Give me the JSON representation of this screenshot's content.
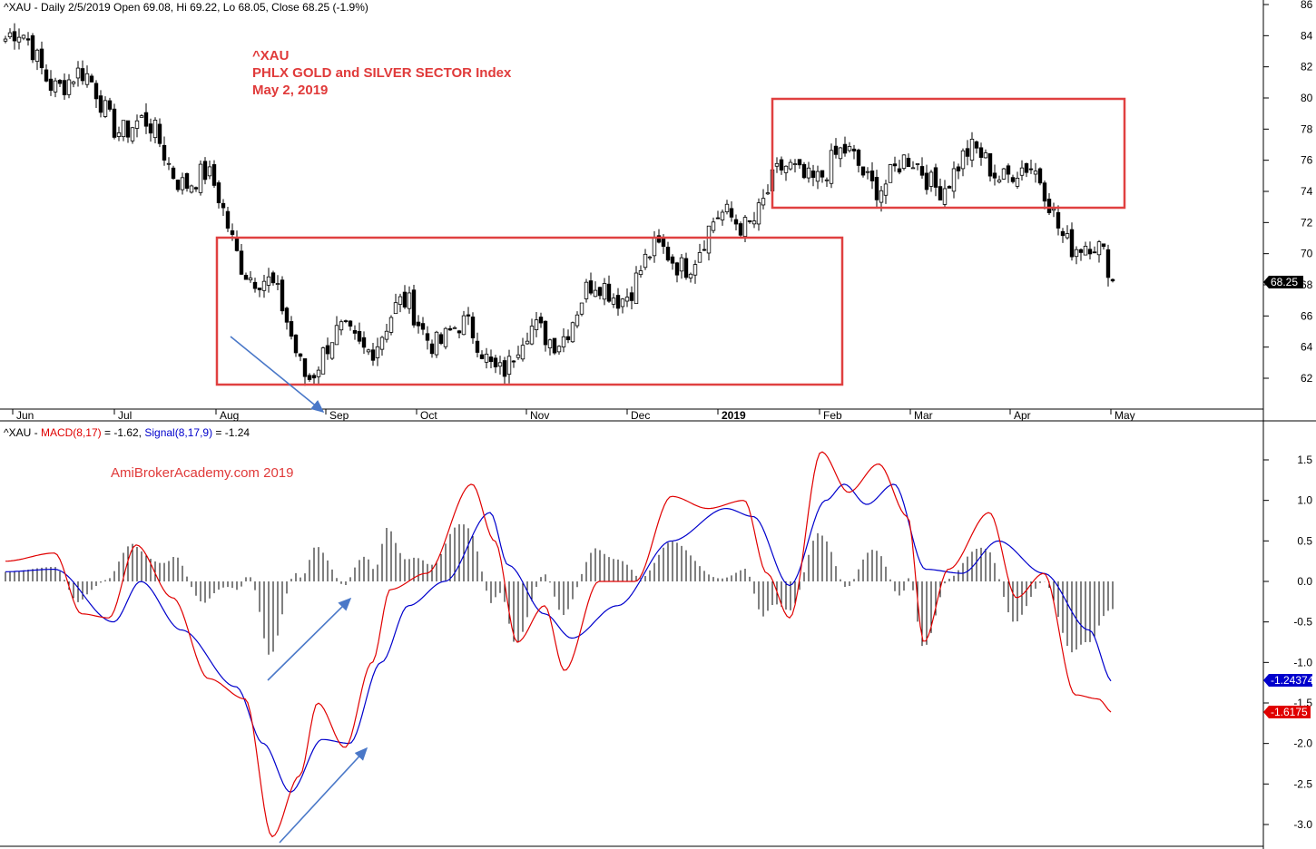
{
  "header": {
    "symbol": "^XAU",
    "info": " - Daily 2/5/2019 Open 69.08, Hi 69.22, Lo 68.05, Close 68.25 (-1.9%)"
  },
  "annotations": {
    "line1": "^XAU",
    "line2": "PHLX GOLD and SILVER SECTOR Index",
    "line3": "May 2, 2019",
    "brand": "AmiBrokerAcademy.com  2019"
  },
  "macd_header": {
    "prefix": "^XAU - ",
    "macd_label": "MACD(8,17)",
    "macd_value": " = -1.62, ",
    "signal_label": "Signal(8,17,9)",
    "signal_value": " = -1.24"
  },
  "colors": {
    "macd": "#e00000",
    "signal": "#0000cc",
    "box": "#e04040",
    "arrow": "#4a78c8",
    "price_badge": "#000000"
  },
  "chart_data": [
    {
      "type": "candlestick",
      "title": "^XAU",
      "x_labels": [
        "Jun",
        "Jul",
        "Aug",
        "Sep",
        "Oct",
        "Nov",
        "Dec",
        "2019",
        "Feb",
        "Mar",
        "Apr",
        "May"
      ],
      "y_ticks": [
        62,
        64,
        66,
        68,
        70,
        72,
        74,
        76,
        78,
        80,
        82,
        84,
        86
      ],
      "ylim": [
        60.5,
        86.5
      ],
      "last_price": "68.25",
      "ohlc_anchors": [
        [
          "Jun",
          83.8
        ],
        [
          "Jul",
          79.6
        ],
        [
          "Aug",
          74.2
        ],
        [
          "Sep",
          63.0
        ],
        [
          "Oct",
          66.0
        ],
        [
          "Nov",
          63.2
        ],
        [
          "Dec",
          67.8
        ],
        [
          "2019",
          71.0
        ],
        [
          "Feb",
          75.8
        ],
        [
          "Mar",
          75.0
        ],
        [
          "Apr",
          76.0
        ],
        [
          "May",
          68.25
        ]
      ],
      "boxes": [
        {
          "label": "range",
          "x_from": "Aug",
          "x_to": "Jan",
          "y_from": 61.6,
          "y_to": 71.0
        },
        {
          "label": "range",
          "x_from": "Feb",
          "x_to": "Apr",
          "y_from": 73.0,
          "y_to": 80.0
        }
      ]
    },
    {
      "type": "line",
      "title": "MACD(8,17) Signal(8,17,9)",
      "y_ticks": [
        -3.0,
        -2.5,
        -2.0,
        -1.5,
        -1.0,
        -0.5,
        0.0,
        0.5,
        1.0,
        1.5
      ],
      "ylim": [
        -3.25,
        1.75
      ],
      "series": [
        {
          "name": "MACD(8,17)",
          "last": "-1.6175"
        },
        {
          "name": "Signal(8,17,9)",
          "last": "-1.24374"
        }
      ]
    }
  ]
}
